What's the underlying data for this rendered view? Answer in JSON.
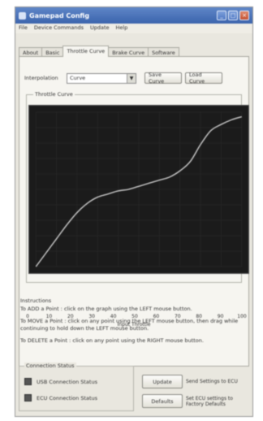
{
  "window": {
    "title": "Gamepad Config",
    "icon": "app-icon"
  },
  "menu": [
    "File",
    "Device Commands",
    "Update",
    "Help"
  ],
  "tabs": [
    {
      "label": "About",
      "active": false
    },
    {
      "label": "Basic",
      "active": false
    },
    {
      "label": "Throttle Curve",
      "active": true
    },
    {
      "label": "Brake Curve",
      "active": false
    },
    {
      "label": "Software",
      "active": false
    }
  ],
  "interpolation": {
    "label": "Interpolation",
    "value": "Curve"
  },
  "buttons": {
    "save_curve": "Save Curve",
    "load_curve": "Load Curve"
  },
  "curve_group": {
    "title": "Throttle Curve"
  },
  "chart_data": {
    "type": "line",
    "title": "",
    "xlabel": "Input Throttle",
    "ylabel": "",
    "xlim": [
      0,
      100
    ],
    "ylim": [
      0,
      100
    ],
    "x_ticks": [
      0,
      10,
      20,
      30,
      40,
      50,
      60,
      70,
      80,
      90,
      100
    ],
    "background": "#1b1b1b",
    "grid": true,
    "series": [
      {
        "x": [
          0,
          5,
          10,
          15,
          20,
          25,
          30,
          35,
          40,
          45,
          50,
          55,
          60,
          65,
          70,
          75,
          80,
          85,
          90,
          95,
          100
        ],
        "y": [
          0,
          9,
          18,
          27,
          35,
          41,
          45,
          47,
          49,
          50,
          52,
          54,
          56,
          58,
          62,
          68,
          79,
          88,
          92,
          95,
          97
        ],
        "color": "#b9b9b9"
      }
    ]
  },
  "instructions": {
    "title": "Instructions",
    "lines": [
      "To ADD a Point : click on the graph using the LEFT mouse button.",
      "To MOVE a Point : click on any point using the LEFT mouse button, then drag while continuing to hold down the LEFT mouse button.",
      "To DELETE a Point : click on any point using the RIGHT mouse button."
    ]
  },
  "connection_status": {
    "title": "Connection Status",
    "usb_label": "USB Connection Status",
    "ecu_label": "ECU Connection Status",
    "led_color": "#555555"
  },
  "actions": {
    "update_label": "Update",
    "update_desc": "Send Settings to ECU",
    "defaults_label": "Defaults",
    "defaults_desc": "Set ECU settings to Factory Defaults"
  }
}
